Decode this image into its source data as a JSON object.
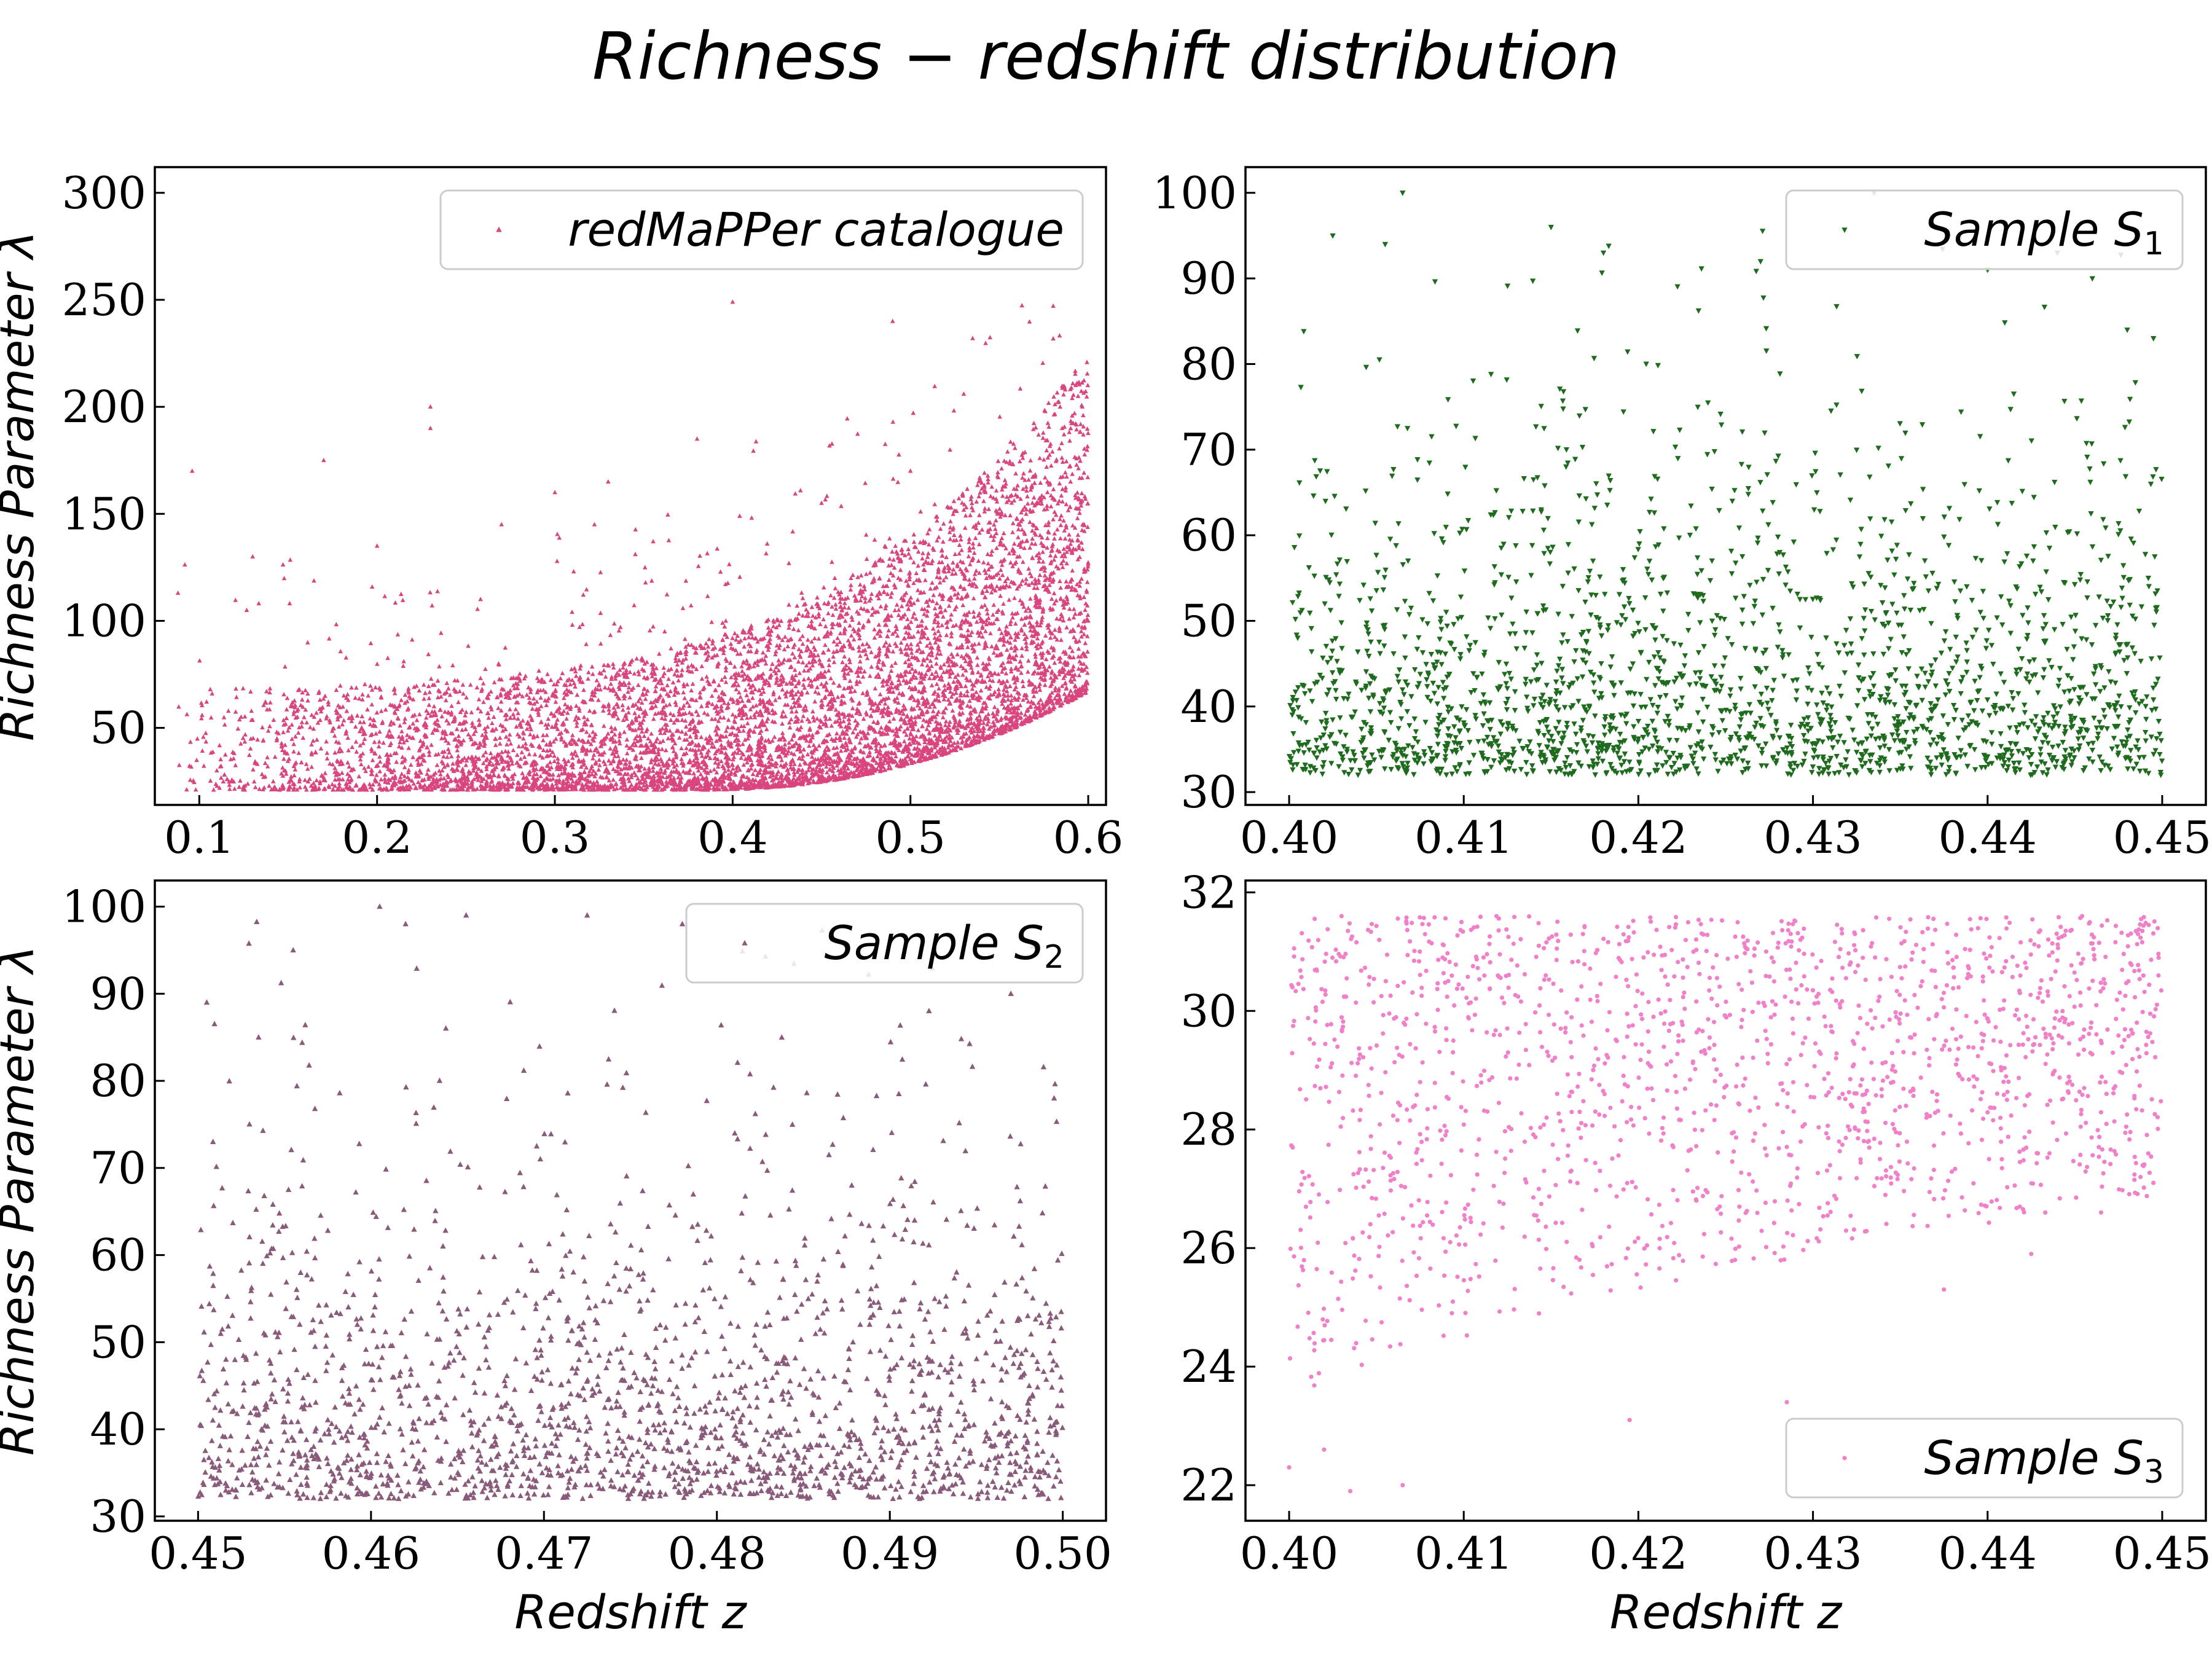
{
  "figure_title": "Richness − redshift distribution",
  "shared_ylabel": "Richness Parameter λ",
  "shared_xlabel": "Redshift z",
  "chart_data": [
    {
      "id": "catalogue",
      "type": "scatter",
      "legend_label": "redMaPPer catalogue",
      "legend_sub": "",
      "legend_position": "top-right",
      "marker": "triangle-up",
      "color": "#d9457e",
      "xlabel": "",
      "ylabel": "Richness Parameter λ",
      "xlim": [
        0.075,
        0.61
      ],
      "ylim": [
        14,
        312
      ],
      "xticks": [
        0.1,
        0.2,
        0.3,
        0.4,
        0.5,
        0.6
      ],
      "xtick_labels": [
        "0.1",
        "0.2",
        "0.3",
        "0.4",
        "0.5",
        "0.6"
      ],
      "yticks": [
        50,
        100,
        150,
        200,
        250,
        300
      ],
      "ytick_labels": [
        "50",
        "100",
        "150",
        "200",
        "250",
        "300"
      ],
      "points": [
        [
          0.096,
          170
        ],
        [
          0.088,
          113
        ],
        [
          0.23,
          200
        ],
        [
          0.23,
          190
        ],
        [
          0.17,
          175
        ],
        [
          0.38,
          185
        ],
        [
          0.4,
          249
        ],
        [
          0.49,
          240
        ],
        [
          0.535,
          232
        ],
        [
          0.53,
          206
        ],
        [
          0.56,
          115
        ],
        [
          0.59,
          95
        ],
        [
          0.6,
          100
        ],
        [
          0.45,
          155
        ],
        [
          0.3,
          160
        ],
        [
          0.33,
          165
        ],
        [
          0.27,
          145
        ],
        [
          0.2,
          135
        ],
        [
          0.13,
          130
        ],
        [
          0.5,
          170
        ],
        [
          0.55,
          150
        ]
      ],
      "density": {
        "x_min": 0.085,
        "x_max": 0.6,
        "floor": 21,
        "base_spread": 22,
        "growth": 50,
        "power": 3,
        "tail": 0.04,
        "count": 7000
      }
    },
    {
      "id": "s1",
      "type": "scatter",
      "legend_label": "Sample S",
      "legend_sub": "1",
      "legend_position": "top-right",
      "marker": "triangle-down",
      "color": "#1e6b1e",
      "xlabel": "",
      "ylabel": "",
      "xlim": [
        0.3975,
        0.4525
      ],
      "ylim": [
        28.5,
        103
      ],
      "xticks": [
        0.4,
        0.41,
        0.42,
        0.43,
        0.44,
        0.45
      ],
      "xtick_labels": [
        "0.40",
        "0.41",
        "0.42",
        "0.43",
        "0.44",
        "0.45"
      ],
      "yticks": [
        30,
        40,
        50,
        60,
        70,
        80,
        90,
        100
      ],
      "ytick_labels": [
        "30",
        "40",
        "50",
        "60",
        "70",
        "80",
        "90",
        "100"
      ],
      "points": [
        [
          0.4065,
          100
        ],
        [
          0.4055,
          94
        ],
        [
          0.4025,
          95
        ],
        [
          0.415,
          96
        ],
        [
          0.418,
          93
        ],
        [
          0.427,
          92
        ],
        [
          0.4335,
          100
        ],
        [
          0.44,
          91
        ],
        [
          0.444,
          93
        ],
        [
          0.446,
          90
        ],
        [
          0.448,
          84
        ],
        [
          0.4495,
          83
        ]
      ],
      "density": {
        "x_min": 0.4,
        "x_max": 0.45,
        "y_min": 32,
        "y_max": 100,
        "scale": 12,
        "count": 2200
      }
    },
    {
      "id": "s2",
      "type": "scatter",
      "legend_label": "Sample S",
      "legend_sub": "2",
      "legend_position": "top-right",
      "marker": "triangle-up",
      "color": "#8a5a7a",
      "xlabel": "Redshift z",
      "ylabel": "Richness Parameter λ",
      "xlim": [
        0.4475,
        0.5025
      ],
      "ylim": [
        29.5,
        103
      ],
      "xticks": [
        0.45,
        0.46,
        0.47,
        0.48,
        0.49,
        0.5
      ],
      "xtick_labels": [
        "0.45",
        "0.46",
        "0.47",
        "0.48",
        "0.49",
        "0.50"
      ],
      "yticks": [
        30,
        40,
        50,
        60,
        70,
        80,
        90,
        100
      ],
      "ytick_labels": [
        "30",
        "40",
        "50",
        "60",
        "70",
        "80",
        "90",
        "100"
      ],
      "points": [
        [
          0.4605,
          100
        ],
        [
          0.462,
          98
        ],
        [
          0.4655,
          99
        ],
        [
          0.4725,
          99
        ],
        [
          0.478,
          98
        ],
        [
          0.4505,
          89
        ],
        [
          0.4535,
          85
        ],
        [
          0.4555,
          95
        ],
        [
          0.497,
          90
        ],
        [
          0.4995,
          78
        ]
      ],
      "density": {
        "x_min": 0.45,
        "x_max": 0.5,
        "y_min": 32,
        "y_max": 100,
        "scale": 13,
        "count": 2000
      }
    },
    {
      "id": "s3",
      "type": "scatter",
      "legend_label": "Sample S",
      "legend_sub": "3",
      "legend_position": "bottom-right",
      "marker": "dot",
      "color": "#f080c8",
      "xlabel": "Redshift z",
      "ylabel": "",
      "xlim": [
        0.3975,
        0.4525
      ],
      "ylim": [
        21.4,
        32.2
      ],
      "xticks": [
        0.4,
        0.41,
        0.42,
        0.43,
        0.44,
        0.45
      ],
      "xtick_labels": [
        "0.40",
        "0.41",
        "0.42",
        "0.43",
        "0.44",
        "0.45"
      ],
      "yticks": [
        22,
        24,
        26,
        28,
        30,
        32
      ],
      "ytick_labels": [
        "22",
        "24",
        "26",
        "28",
        "30",
        "32"
      ],
      "points": [
        [
          0.4,
          22.3
        ],
        [
          0.4035,
          21.9
        ],
        [
          0.4065,
          22.0
        ],
        [
          0.402,
          22.6
        ],
        [
          0.4285,
          23.4
        ],
        [
          0.4195,
          23.1
        ],
        [
          0.4465,
          26.6
        ],
        [
          0.4495,
          27.1
        ],
        [
          0.4375,
          25.3
        ],
        [
          0.4425,
          25.9
        ]
      ],
      "density": {
        "x_min": 0.4,
        "x_max": 0.45,
        "y_min": 22,
        "y_max": 31.6,
        "count": 1700
      }
    }
  ]
}
